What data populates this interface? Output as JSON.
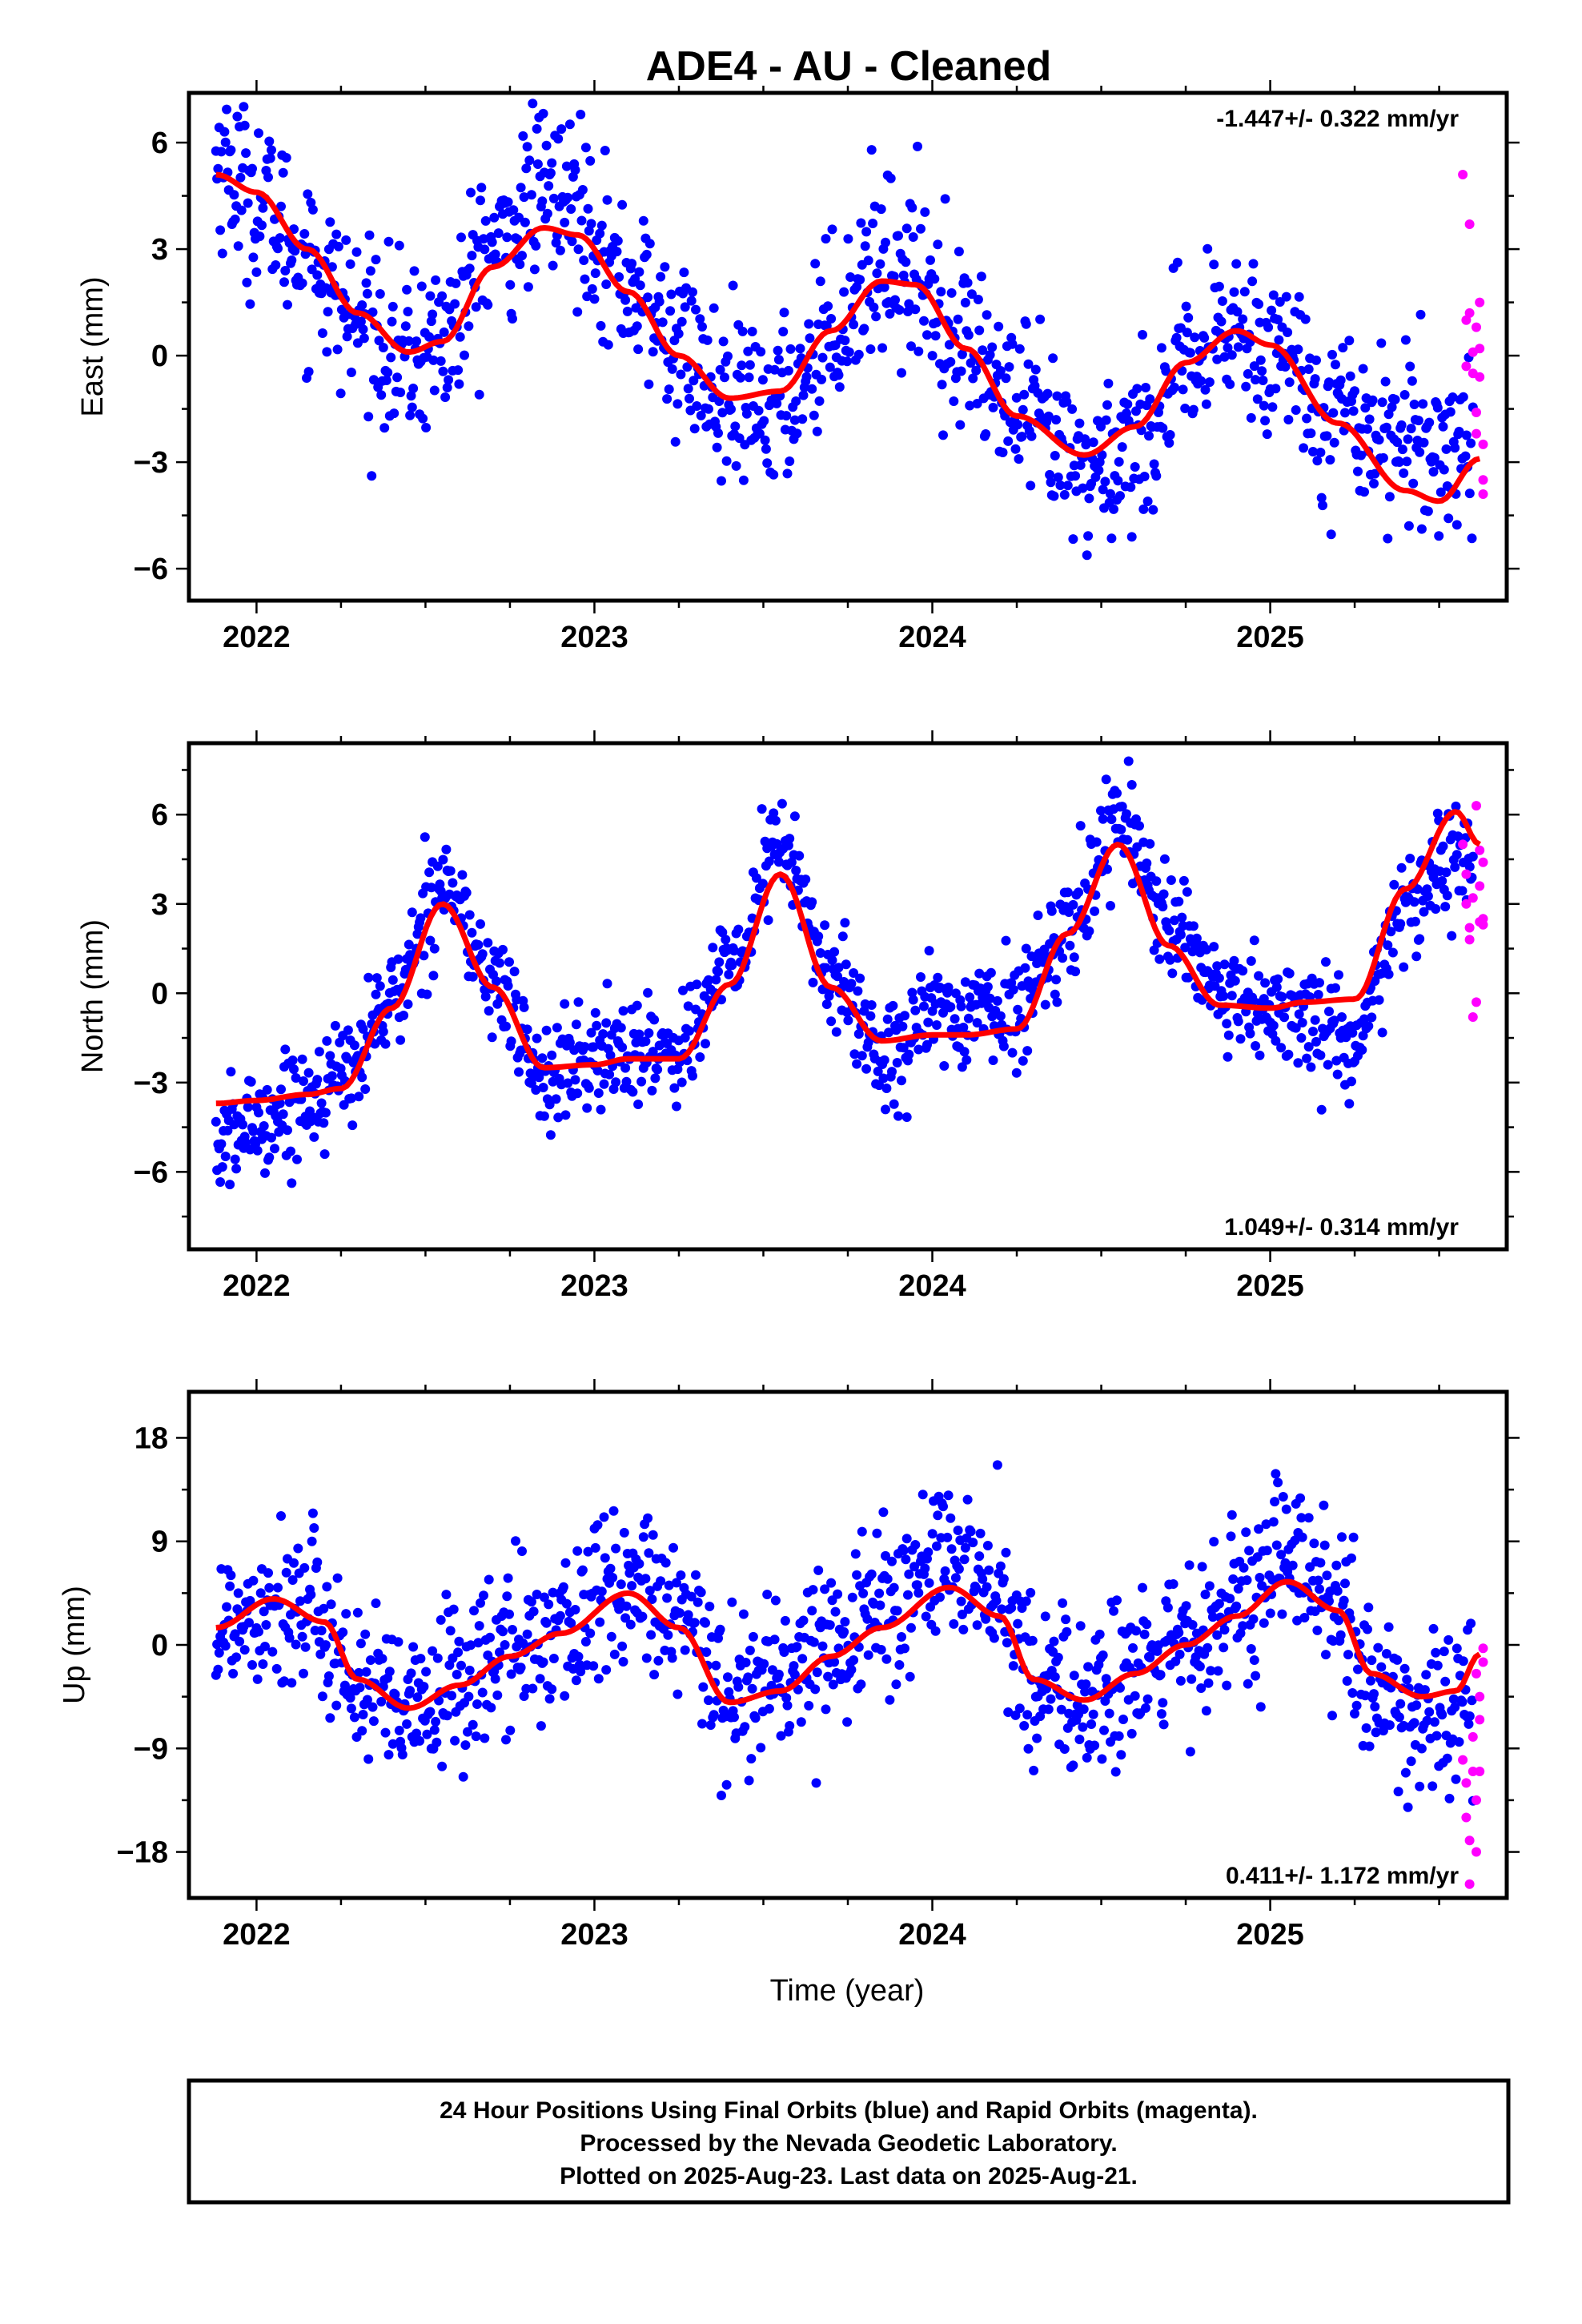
{
  "title": "ADE4  - AU - Cleaned",
  "xlabel": "Time (year)",
  "note_lines": [
    "24 Hour Positions Using Final Orbits (blue) and Rapid Orbits (magenta).",
    "Processed by the Nevada Geodetic Laboratory.",
    "Plotted on 2025-Aug-23. Last data on 2025-Aug-21."
  ],
  "colors": {
    "final": "#0000ff",
    "rapid": "#ff00ff",
    "fit": "#ff0000",
    "frame": "#000000"
  },
  "chart_data": [
    {
      "type": "scatter",
      "ylabel": "East (mm)",
      "rate": "-1.447+/- 0.322 mm/yr",
      "rate_position": "top-right",
      "xlim": [
        2021.8,
        2025.7
      ],
      "ylim": [
        -6.9,
        7.4
      ],
      "xticks": [
        2022,
        2023,
        2024,
        2025
      ],
      "yticks": [
        6,
        3,
        0,
        -3,
        -6
      ],
      "ytick_labels": [
        "6",
        "3",
        "0",
        "−3",
        "−6"
      ],
      "fit_curve": {
        "x": [
          2021.88,
          2022.0,
          2022.15,
          2022.3,
          2022.45,
          2022.55,
          2022.7,
          2022.85,
          2022.95,
          2023.1,
          2023.25,
          2023.4,
          2023.55,
          2023.7,
          2023.85,
          2023.95,
          2024.1,
          2024.25,
          2024.45,
          2024.6,
          2024.75,
          2024.9,
          2025.0,
          2025.2,
          2025.4,
          2025.5,
          2025.62
        ],
        "y": [
          5.1,
          4.6,
          3.0,
          1.2,
          0.1,
          0.4,
          2.5,
          3.6,
          3.4,
          1.8,
          0.0,
          -1.2,
          -1.0,
          0.7,
          2.1,
          2.0,
          0.2,
          -1.7,
          -2.8,
          -2.0,
          -0.2,
          0.7,
          0.3,
          -1.9,
          -3.8,
          -4.1,
          -2.9
        ]
      },
      "final_series": {
        "name": "Final Orbits (blue)",
        "trend": {
          "x": [
            2021.88,
            2022.0,
            2022.15,
            2022.3,
            2022.45,
            2022.55,
            2022.7,
            2022.85,
            2022.95,
            2023.1,
            2023.25,
            2023.4,
            2023.55,
            2023.7,
            2023.85,
            2023.95,
            2024.1,
            2024.25,
            2024.45,
            2024.6,
            2024.75,
            2024.9,
            2025.0,
            2025.2,
            2025.4,
            2025.55
          ],
          "y": [
            5.5,
            4.4,
            2.8,
            1.0,
            -0.1,
            0.5,
            3.0,
            4.6,
            4.3,
            2.0,
            0.3,
            -1.6,
            -1.4,
            0.8,
            2.7,
            2.3,
            0.4,
            -1.6,
            -3.3,
            -2.4,
            -0.5,
            0.8,
            0.3,
            -1.6,
            -2.3,
            -2.6
          ]
        },
        "x_start": 2021.88,
        "x_end": 2025.6,
        "count": 1180,
        "scatter": 1.2
      },
      "rapid_series": {
        "name": "Rapid Orbits (magenta)",
        "x": [
          2025.57,
          2025.58,
          2025.58,
          2025.59,
          2025.59,
          2025.6,
          2025.6,
          2025.61,
          2025.61,
          2025.61,
          2025.62,
          2025.62,
          2025.62,
          2025.63,
          2025.63,
          2025.63
        ],
        "y": [
          5.1,
          1.0,
          -0.3,
          3.7,
          1.2,
          0.1,
          -0.5,
          0.8,
          -2.2,
          -1.6,
          1.5,
          0.2,
          -0.6,
          -3.5,
          -3.9,
          -2.5
        ]
      }
    },
    {
      "type": "scatter",
      "ylabel": "North (mm)",
      "rate": "1.049+/- 0.314 mm/yr",
      "rate_position": "bottom-right",
      "xlim": [
        2021.8,
        2025.7
      ],
      "ylim": [
        -8.6,
        8.4
      ],
      "xticks": [
        2022,
        2023,
        2024,
        2025
      ],
      "yticks": [
        6,
        3,
        0,
        -3,
        -6
      ],
      "ytick_labels": [
        "6",
        "3",
        "0",
        "−3",
        "−6"
      ],
      "fit_curve": {
        "x": [
          2021.88,
          2022.0,
          2022.15,
          2022.25,
          2022.4,
          2022.55,
          2022.7,
          2022.85,
          2023.0,
          2023.1,
          2023.25,
          2023.4,
          2023.55,
          2023.7,
          2023.85,
          2024.0,
          2024.1,
          2024.25,
          2024.4,
          2024.55,
          2024.7,
          2024.85,
          2025.0,
          2025.1,
          2025.25,
          2025.4,
          2025.55,
          2025.62
        ],
        "y": [
          -3.7,
          -3.6,
          -3.4,
          -3.2,
          -0.5,
          3.0,
          0.2,
          -2.5,
          -2.4,
          -2.2,
          -2.2,
          0.3,
          4.0,
          0.2,
          -1.6,
          -1.4,
          -1.4,
          -1.2,
          2.0,
          5.0,
          1.6,
          -0.4,
          -0.5,
          -0.3,
          -0.2,
          3.5,
          6.1,
          5.0
        ]
      },
      "final_series": {
        "name": "Final Orbits (blue)",
        "trend": {
          "x": [
            2021.88,
            2022.0,
            2022.15,
            2022.25,
            2022.4,
            2022.55,
            2022.7,
            2022.85,
            2023.0,
            2023.1,
            2023.25,
            2023.4,
            2023.55,
            2023.7,
            2023.85,
            2024.0,
            2024.1,
            2024.25,
            2024.4,
            2024.55,
            2024.7,
            2024.85,
            2025.0,
            2025.1,
            2025.25,
            2025.4,
            2025.55
          ],
          "y": [
            -5.2,
            -4.3,
            -3.5,
            -2.8,
            -0.3,
            3.8,
            0.4,
            -2.8,
            -2.2,
            -1.9,
            -1.8,
            0.8,
            5.0,
            0.6,
            -2.0,
            -0.8,
            -0.6,
            -0.5,
            2.2,
            6.0,
            2.6,
            -0.3,
            -0.6,
            -0.8,
            -1.8,
            2.8,
            4.6
          ]
        },
        "x_start": 2021.88,
        "x_end": 2025.6,
        "count": 1180,
        "scatter": 0.9
      },
      "rapid_series": {
        "name": "Rapid Orbits (magenta)",
        "x": [
          2025.57,
          2025.58,
          2025.58,
          2025.59,
          2025.59,
          2025.6,
          2025.6,
          2025.61,
          2025.61,
          2025.62,
          2025.62,
          2025.62,
          2025.63,
          2025.63,
          2025.63
        ],
        "y": [
          5.0,
          4.0,
          3.0,
          2.2,
          1.8,
          3.2,
          -0.8,
          -0.3,
          6.3,
          4.8,
          3.6,
          2.4,
          2.5,
          2.3,
          4.4
        ]
      }
    },
    {
      "type": "scatter",
      "ylabel": "Up (mm)",
      "rate": "0.411+/- 1.172 mm/yr",
      "rate_position": "bottom-right",
      "xlim": [
        2021.8,
        2025.7
      ],
      "ylim": [
        -22,
        22
      ],
      "xticks": [
        2022,
        2023,
        2024,
        2025
      ],
      "yticks": [
        18,
        9,
        0,
        -9,
        -18
      ],
      "ytick_labels": [
        "18",
        "9",
        "0",
        "−9",
        "−18"
      ],
      "fit_curve": {
        "x": [
          2021.88,
          2022.05,
          2022.2,
          2022.3,
          2022.45,
          2022.6,
          2022.75,
          2022.9,
          2023.1,
          2023.25,
          2023.4,
          2023.55,
          2023.7,
          2023.85,
          2024.05,
          2024.2,
          2024.3,
          2024.45,
          2024.6,
          2024.75,
          2024.9,
          2025.05,
          2025.2,
          2025.3,
          2025.45,
          2025.55,
          2025.62
        ],
        "y": [
          1.5,
          4.0,
          2.0,
          -3.0,
          -5.5,
          -3.5,
          -1.0,
          1.0,
          4.5,
          1.5,
          -5.0,
          -4.0,
          -1.0,
          1.5,
          5.0,
          2.5,
          -3.0,
          -4.8,
          -2.5,
          0.0,
          2.5,
          5.5,
          3.0,
          -2.5,
          -4.5,
          -4.0,
          -0.8
        ]
      },
      "final_series": {
        "name": "Final Orbits (blue)",
        "trend": {
          "x": [
            2021.88,
            2022.05,
            2022.2,
            2022.3,
            2022.45,
            2022.6,
            2022.75,
            2022.9,
            2023.1,
            2023.25,
            2023.4,
            2023.55,
            2023.7,
            2023.85,
            2024.05,
            2024.2,
            2024.3,
            2024.45,
            2024.6,
            2024.75,
            2024.9,
            2025.05,
            2025.2,
            2025.3,
            2025.45,
            2025.55
          ],
          "y": [
            1.5,
            4.0,
            2.0,
            -3.5,
            -6.5,
            -3.0,
            -0.5,
            1.5,
            5.0,
            2.0,
            -4.0,
            -2.5,
            0.5,
            3.5,
            7.0,
            4.0,
            -3.0,
            -5.0,
            -2.5,
            0.0,
            3.0,
            7.0,
            3.5,
            -4.0,
            -6.5,
            -5.0
          ]
        },
        "x_start": 2021.88,
        "x_end": 2025.6,
        "count": 1180,
        "scatter": 3.6
      },
      "rapid_series": {
        "name": "Rapid Orbits (magenta)",
        "x": [
          2025.57,
          2025.58,
          2025.58,
          2025.59,
          2025.59,
          2025.6,
          2025.6,
          2025.61,
          2025.61,
          2025.61,
          2025.62,
          2025.62,
          2025.62,
          2025.63,
          2025.63
        ],
        "y": [
          -10,
          -12,
          -15,
          -17,
          -20.8,
          -8,
          -11,
          -13.5,
          -18,
          -2.5,
          -4.5,
          -6.5,
          -11,
          -1.5,
          -0.3
        ]
      }
    }
  ]
}
